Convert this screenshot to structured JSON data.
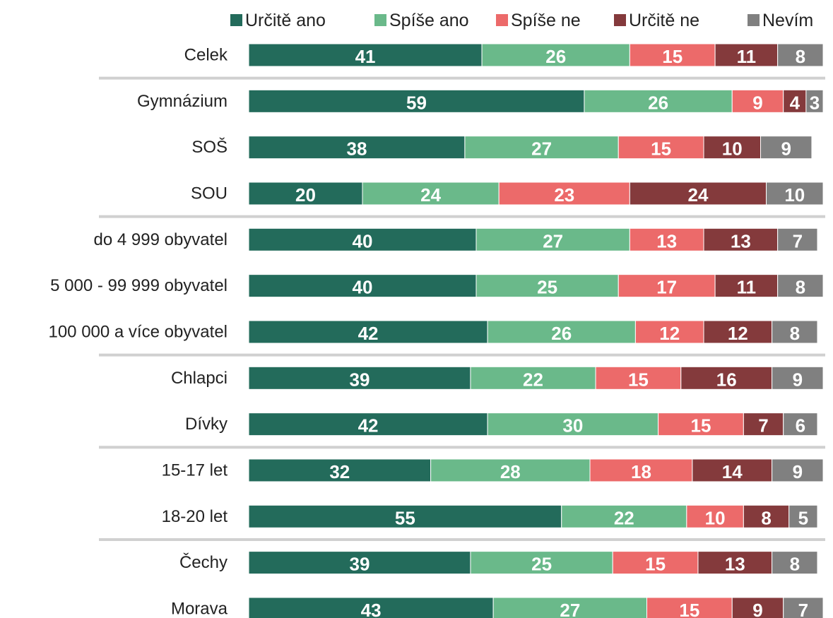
{
  "chart_data": {
    "type": "stacked-bar-horizontal",
    "categories": [
      "Celek",
      "Gymnázium",
      "SOŠ",
      "SOU",
      "do 4 999 obyvatel",
      "5 000 - 99 999 obyvatel",
      "100 000 a více obyvatel",
      "Chlapci",
      "Dívky",
      "15-17 let",
      "18-20 let",
      "Čechy",
      "Morava"
    ],
    "series": [
      {
        "name": "Určitě ano",
        "color": "#236b5b",
        "values": [
          41,
          59,
          38,
          20,
          40,
          40,
          42,
          39,
          42,
          32,
          55,
          39,
          43
        ]
      },
      {
        "name": "Spíše ano",
        "color": "#6ab98a",
        "values": [
          26,
          26,
          27,
          24,
          27,
          25,
          26,
          22,
          30,
          28,
          22,
          25,
          27
        ]
      },
      {
        "name": "Spíše ne",
        "color": "#ec6a6a",
        "values": [
          15,
          9,
          15,
          23,
          13,
          17,
          12,
          15,
          15,
          18,
          10,
          15,
          15
        ]
      },
      {
        "name": "Určitě ne",
        "color": "#843a3c",
        "values": [
          11,
          4,
          10,
          24,
          13,
          11,
          12,
          16,
          7,
          14,
          8,
          13,
          9
        ]
      },
      {
        "name": "Nevím",
        "color": "#808080",
        "values": [
          8,
          3,
          9,
          10,
          7,
          8,
          8,
          9,
          6,
          9,
          5,
          8,
          7
        ]
      }
    ],
    "legend": "top"
  }
}
